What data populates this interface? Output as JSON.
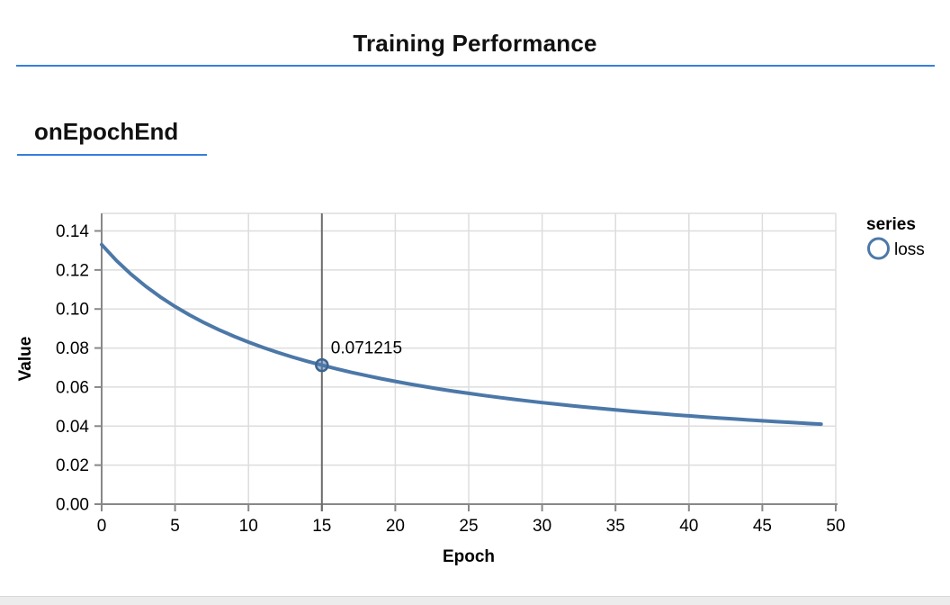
{
  "page": {
    "title": "Training Performance",
    "section_label": "onEpochEnd"
  },
  "colors": {
    "accent_rule": "#357edd",
    "line": "#4c78a8",
    "point_stroke": "#3b6391",
    "grid": "#dddddd",
    "axis": "#888888",
    "crosshair": "#6b6b6b",
    "text": "#000000",
    "footer_strip": "#ececec"
  },
  "chart_data": {
    "type": "line",
    "title": "",
    "xlabel": "Epoch",
    "ylabel": "Value",
    "xlim": [
      0,
      50
    ],
    "ylim": [
      0,
      0.149
    ],
    "grid": true,
    "x_ticks": [
      0,
      5,
      10,
      15,
      20,
      25,
      30,
      35,
      40,
      45,
      50
    ],
    "x_tick_labels": [
      "0",
      "5",
      "10",
      "15",
      "20",
      "25",
      "30",
      "35",
      "40",
      "45",
      "50"
    ],
    "y_ticks": [
      0,
      0.02,
      0.04,
      0.06,
      0.08,
      0.1,
      0.12,
      0.14
    ],
    "y_tick_labels": [
      "0.00",
      "0.02",
      "0.04",
      "0.06",
      "0.08",
      "0.10",
      "0.12",
      "0.14"
    ],
    "legend": {
      "position": "right",
      "title": "series",
      "items": [
        {
          "label": "loss",
          "symbol": "circle-outline"
        }
      ]
    },
    "series": [
      {
        "name": "loss",
        "values": [
          0.132998,
          0.124891,
          0.117833,
          0.111632,
          0.106141,
          0.101244,
          0.096851,
          0.092886,
          0.089291,
          0.086016,
          0.08302,
          0.080269,
          0.077734,
          0.07539,
          0.073217,
          0.071215,
          0.069314,
          0.067554,
          0.065907,
          0.06436,
          0.062906,
          0.061537,
          0.060245,
          0.059023,
          0.057867,
          0.056771,
          0.05573,
          0.054741,
          0.053799,
          0.052903,
          0.052047,
          0.05123,
          0.050448,
          0.049701,
          0.048984,
          0.048297,
          0.047639,
          0.047006,
          0.046398,
          0.045813,
          0.045249,
          0.044707,
          0.044184,
          0.04368,
          0.043193,
          0.042723,
          0.042268,
          0.041829,
          0.041404,
          0.040992
        ]
      }
    ],
    "hover": {
      "series": "loss",
      "epoch": 15,
      "value": 0.071215,
      "label": "0.071215"
    }
  }
}
